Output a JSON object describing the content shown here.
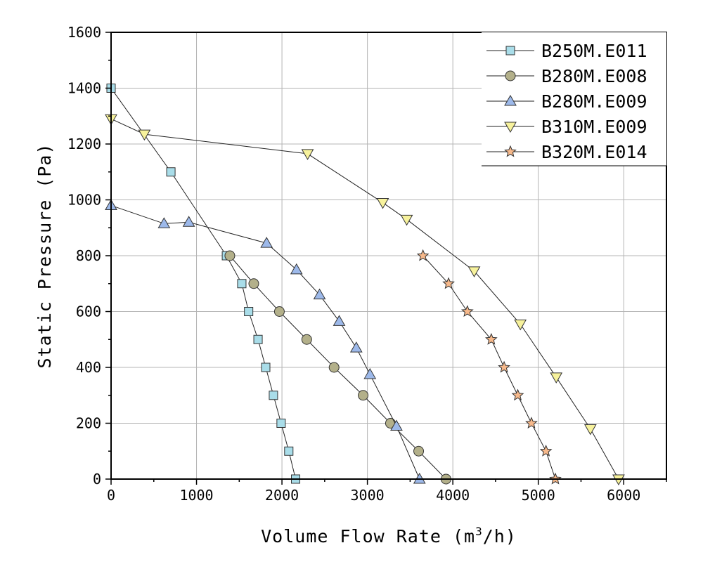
{
  "chart_data": {
    "type": "line",
    "title": "",
    "xlabel_main": "Volume Flow Rate (m",
    "xlabel_sup": "3",
    "xlabel_tail": "/h)",
    "ylabel": "Static Pressure (Pa)",
    "xlim": [
      0,
      6500
    ],
    "ylim": [
      0,
      1600
    ],
    "xticks": [
      0,
      1000,
      2000,
      3000,
      4000,
      5000,
      6000
    ],
    "yticks": [
      0,
      200,
      400,
      600,
      800,
      1000,
      1200,
      1400,
      1600
    ],
    "grid": true,
    "legend_position": "top-right",
    "series": [
      {
        "name": "B250M.E011",
        "marker": "square",
        "color": "#a9dde9",
        "x": [
          0,
          700,
          1350,
          1530,
          1610,
          1720,
          1810,
          1900,
          1990,
          2080,
          2160
        ],
        "y": [
          1400,
          1100,
          800,
          700,
          600,
          500,
          400,
          300,
          200,
          100,
          0
        ]
      },
      {
        "name": "B280M.E008",
        "marker": "circle",
        "color": "#b3b08a",
        "x": [
          1390,
          1670,
          1970,
          2290,
          2610,
          2950,
          3270,
          3600,
          3920
        ],
        "y": [
          800,
          700,
          600,
          500,
          400,
          300,
          200,
          100,
          0
        ]
      },
      {
        "name": "B280M.E009",
        "marker": "triangle-up",
        "color": "#9db9ea",
        "x": [
          0,
          620,
          910,
          1820,
          2170,
          2440,
          2670,
          2870,
          3030,
          3340,
          3610
        ],
        "y": [
          980,
          915,
          920,
          845,
          750,
          660,
          565,
          470,
          375,
          190,
          0
        ]
      },
      {
        "name": "B310M.E009",
        "marker": "triangle-down",
        "color": "#f7f29c",
        "x": [
          0,
          390,
          2300,
          3180,
          3460,
          4250,
          4790,
          5210,
          5610,
          5940
        ],
        "y": [
          1290,
          1235,
          1165,
          990,
          930,
          745,
          555,
          365,
          180,
          0
        ]
      },
      {
        "name": "B320M.E014",
        "marker": "star",
        "color": "#f7b98b",
        "x": [
          3650,
          3950,
          4170,
          4450,
          4600,
          4760,
          4920,
          5090,
          5200
        ],
        "y": [
          800,
          700,
          600,
          500,
          400,
          300,
          200,
          100,
          0
        ]
      }
    ]
  }
}
